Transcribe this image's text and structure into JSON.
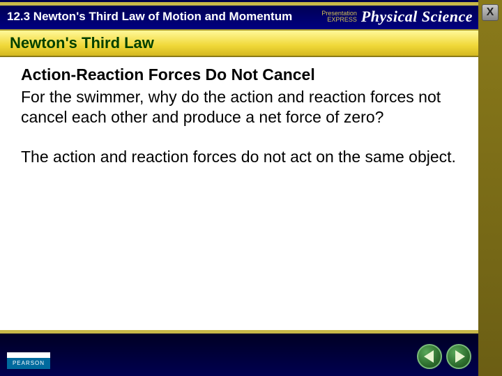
{
  "header": {
    "section_title": "12.3 Newton's Third Law of Motion and Momentum",
    "brand_small": "Presentation",
    "brand_express": "EXPRESS",
    "subject": "Physical Science"
  },
  "topic": {
    "title": "Newton's Third Law"
  },
  "content": {
    "subhead": "Action-Reaction Forces Do Not Cancel",
    "para1": "For the swimmer, why do the action and reaction forces not cancel each other and produce a net force of zero?",
    "para2": "The action and reaction forces do not act on the same object."
  },
  "footer": {
    "publisher": "PEARSON"
  },
  "controls": {
    "close": "X"
  },
  "colors": {
    "header_bg": "#000080",
    "accent": "#c8b848",
    "topic_bar": "#f0d838",
    "topic_text": "#004000",
    "nav_btn": "#2e6e2e"
  }
}
